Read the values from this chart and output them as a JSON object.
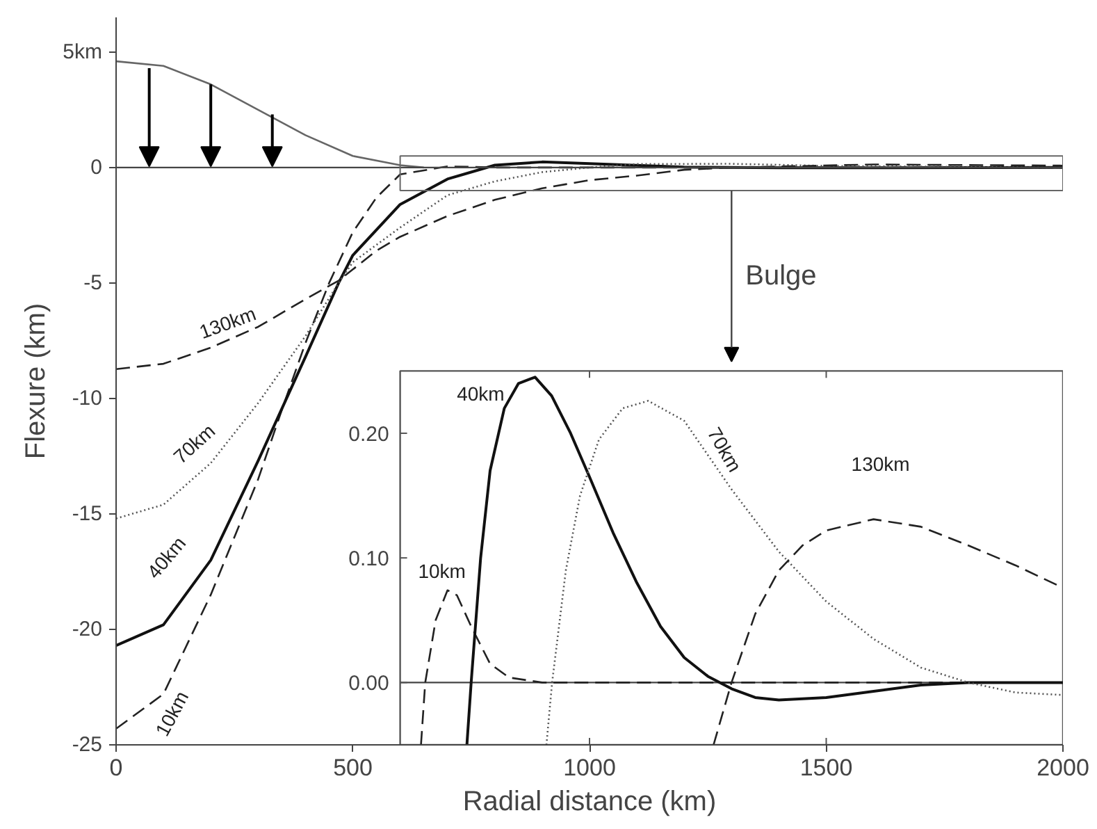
{
  "chart_data": [
    {
      "type": "line",
      "xlabel": "Radial distance (km)",
      "ylabel": "Flexure (km)",
      "xlim": [
        0,
        2000
      ],
      "ylim": [
        -25,
        6.5
      ],
      "xticks": [
        0,
        500,
        1000,
        1500,
        2000
      ],
      "yticks": [
        {
          "value": 5,
          "label": "5km"
        },
        0,
        -5,
        -10,
        -15,
        -20,
        -25
      ],
      "ref_lines": [
        {
          "axis": "y",
          "value": 0
        }
      ],
      "annotations": [
        "Bulge"
      ],
      "series": [
        {
          "color": "#666666",
          "line_style": "solid",
          "x": [
            0,
            100,
            200,
            300,
            400,
            500,
            600,
            650
          ],
          "values": [
            4.6,
            4.4,
            3.6,
            2.5,
            1.4,
            0.5,
            0.1,
            0
          ]
        },
        {
          "name": "10km",
          "color": "#222222",
          "line_style": "dashed",
          "x": [
            0,
            100,
            200,
            300,
            350,
            400,
            450,
            500,
            550,
            600,
            700,
            800,
            1000,
            1500,
            2000
          ],
          "values": [
            -24.3,
            -22.8,
            -18.5,
            -13.5,
            -10.5,
            -7.6,
            -5.0,
            -2.8,
            -1.3,
            -0.3,
            0.05,
            0,
            0,
            0,
            0
          ]
        },
        {
          "name": "40km",
          "color": "#111111",
          "line_style": "solid",
          "x": [
            0,
            100,
            200,
            300,
            400,
            470,
            500,
            600,
            700,
            800,
            900,
            1000,
            1200,
            1400,
            1600,
            2000
          ],
          "values": [
            -20.7,
            -19.8,
            -17.0,
            -12.7,
            -8.2,
            -5.0,
            -3.8,
            -1.6,
            -0.5,
            0.1,
            0.24,
            0.17,
            0.02,
            -0.01,
            -0.01,
            0
          ]
        },
        {
          "name": "70km",
          "color": "#555555",
          "line_style": "dotted",
          "x": [
            0,
            100,
            200,
            300,
            400,
            470,
            500,
            600,
            700,
            800,
            900,
            1000,
            1100,
            1300,
            1500,
            2000
          ],
          "values": [
            -15.2,
            -14.6,
            -12.8,
            -10.2,
            -7.3,
            -5.0,
            -4.1,
            -2.6,
            -1.2,
            -0.6,
            -0.2,
            0,
            0.15,
            0.16,
            0.07,
            -0.01
          ]
        },
        {
          "name": "130km",
          "color": "#222222",
          "line_style": "dashed",
          "x": [
            0,
            100,
            200,
            300,
            400,
            470,
            550,
            600,
            700,
            800,
            900,
            1000,
            1100,
            1200,
            1300,
            1600,
            2000
          ],
          "values": [
            -8.73,
            -8.5,
            -7.8,
            -6.9,
            -5.7,
            -4.9,
            -3.6,
            -3.0,
            -2.1,
            -1.4,
            -0.9,
            -0.55,
            -0.35,
            -0.1,
            0,
            0.13,
            0.08
          ]
        }
      ]
    },
    {
      "type": "line",
      "xlim": [
        600,
        2000
      ],
      "ylim": [
        -0.05,
        0.25
      ],
      "tick_labels": "y",
      "xticks": [
        1000,
        1500,
        2000
      ],
      "yticks": [
        {
          "value": 0,
          "label": "0.00"
        },
        {
          "value": 0.1,
          "label": "0.10"
        },
        {
          "value": 0.2,
          "label": "0.20"
        }
      ],
      "ref_lines": [
        {
          "axis": "y",
          "value": 0
        }
      ],
      "series": [
        {
          "name": "10km",
          "color": "#222222",
          "line_style": "dashed",
          "x": [
            644,
            653,
            675,
            700,
            720,
            750,
            790,
            830,
            900,
            1000,
            1500,
            2000
          ],
          "values": [
            -0.05,
            0,
            0.05,
            0.074,
            0.07,
            0.045,
            0.015,
            0.004,
            0,
            0,
            0,
            0
          ]
        },
        {
          "name": "40km",
          "color": "#111111",
          "line_style": "solid",
          "x": [
            741,
            750,
            770,
            790,
            820,
            850,
            885,
            920,
            960,
            1000,
            1050,
            1100,
            1150,
            1200,
            1250,
            1300,
            1350,
            1400,
            1500,
            1600,
            1700,
            1800,
            2000
          ],
          "values": [
            -0.05,
            0,
            0.1,
            0.17,
            0.22,
            0.24,
            0.245,
            0.23,
            0.2,
            0.165,
            0.12,
            0.08,
            0.045,
            0.02,
            0.005,
            -0.005,
            -0.012,
            -0.014,
            -0.012,
            -0.007,
            -0.002,
            0,
            0
          ]
        },
        {
          "name": "70km",
          "color": "#555555",
          "line_style": "dotted",
          "x": [
            909,
            921,
            950,
            980,
            1020,
            1070,
            1124,
            1200,
            1300,
            1400,
            1500,
            1600,
            1700,
            1800,
            1900,
            2000
          ],
          "values": [
            -0.05,
            0,
            0.09,
            0.15,
            0.195,
            0.22,
            0.226,
            0.21,
            0.155,
            0.105,
            0.065,
            0.035,
            0.012,
            0,
            -0.008,
            -0.01
          ]
        },
        {
          "name": "130km",
          "color": "#222222",
          "line_style": "dashed",
          "x": [
            1262,
            1300,
            1350,
            1400,
            1450,
            1500,
            1600,
            1700,
            1800,
            1900,
            2000
          ],
          "values": [
            -0.05,
            0,
            0.055,
            0.09,
            0.11,
            0.122,
            0.131,
            0.125,
            0.11,
            0.094,
            0.076
          ]
        }
      ]
    }
  ]
}
